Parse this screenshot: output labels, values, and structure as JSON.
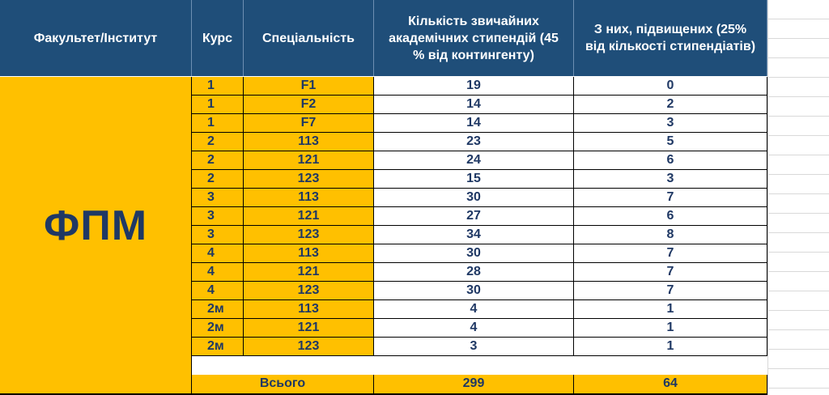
{
  "table": {
    "headers": {
      "faculty": "Факультет/Інститут",
      "course": "Курс",
      "specialty": "Спеціальність",
      "regular": "Кількість звичайних академічних стипендій (45 % від контингенту)",
      "increased": "З них, підвищених (25% від кількості стипендіатів)"
    },
    "faculty_name": "ФПМ",
    "rows": [
      {
        "course": "1",
        "specialty": "F1",
        "regular": "19",
        "increased": "0"
      },
      {
        "course": "1",
        "specialty": "F2",
        "regular": "14",
        "increased": "2"
      },
      {
        "course": "1",
        "specialty": "F7",
        "regular": "14",
        "increased": "3"
      },
      {
        "course": "2",
        "specialty": "113",
        "regular": "23",
        "increased": "5"
      },
      {
        "course": "2",
        "specialty": "121",
        "regular": "24",
        "increased": "6"
      },
      {
        "course": "2",
        "specialty": "123",
        "regular": "15",
        "increased": "3"
      },
      {
        "course": "3",
        "specialty": "113",
        "regular": "30",
        "increased": "7"
      },
      {
        "course": "3",
        "specialty": "121",
        "regular": "27",
        "increased": "6"
      },
      {
        "course": "3",
        "specialty": "123",
        "regular": "34",
        "increased": "8"
      },
      {
        "course": "4",
        "specialty": "113",
        "regular": "30",
        "increased": "7"
      },
      {
        "course": "4",
        "specialty": "121",
        "regular": "28",
        "increased": "7"
      },
      {
        "course": "4",
        "specialty": "123",
        "regular": "30",
        "increased": "7"
      },
      {
        "course": "2м",
        "specialty": "113",
        "regular": "4",
        "increased": "1"
      },
      {
        "course": "2м",
        "specialty": "121",
        "regular": "4",
        "increased": "1"
      },
      {
        "course": "2м",
        "specialty": "123",
        "regular": "3",
        "increased": "1"
      }
    ],
    "total": {
      "label": "Всього",
      "regular": "299",
      "increased": "64"
    }
  },
  "colors": {
    "header_bg": "#1f4e79",
    "accent_yellow": "#ffc000",
    "text_navy": "#1f3864"
  }
}
